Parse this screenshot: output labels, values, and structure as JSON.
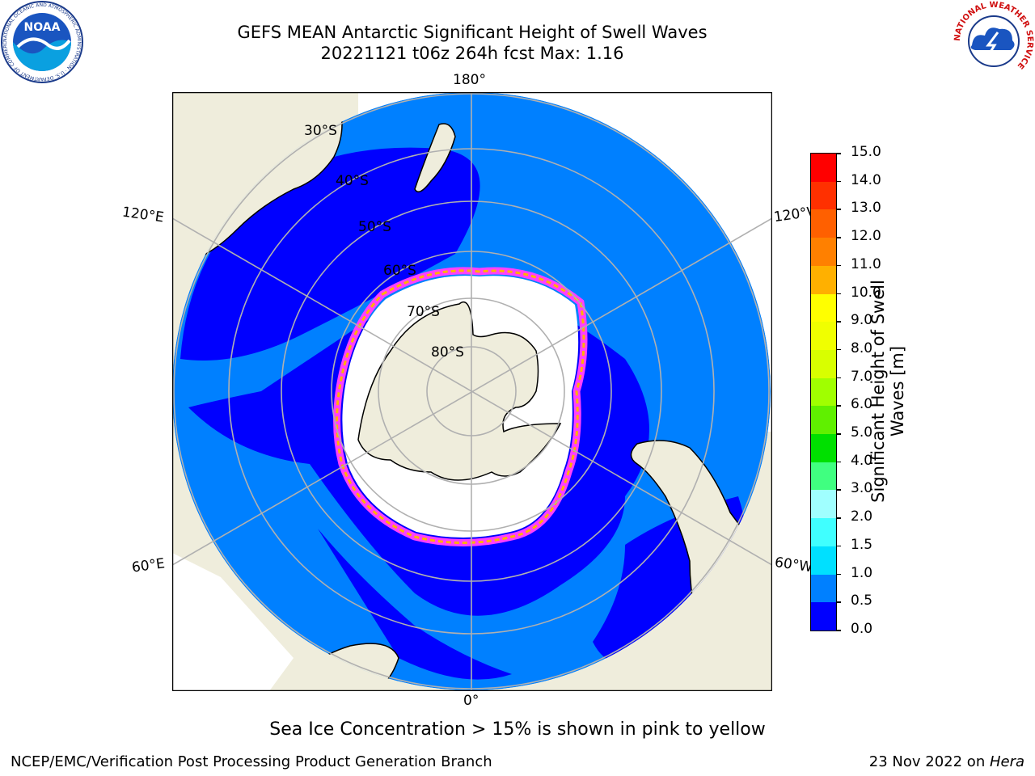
{
  "header": {
    "title_line1": "GEFS MEAN Antarctic Significant Height of Swell Waves",
    "title_line2": "20221121 t06z 264h fcst   Max: 1.16"
  },
  "logos": {
    "noaa": {
      "text": "NOAA",
      "ring_text": "NATIONAL OCEANIC AND ATMOSPHERIC ADMINISTRATION · U.S. DEPARTMENT OF COMMERCE"
    },
    "nws": {
      "ring_text": "NATIONAL WEATHER SERVICE"
    }
  },
  "map": {
    "longitude_labels": {
      "top": "180°",
      "bottom": "0°",
      "left_upper": "120°E",
      "left_lower": "60°E",
      "right_upper": "120°W",
      "right_lower": "60°W"
    },
    "latitude_labels": [
      "30°S",
      "40°S",
      "50°S",
      "60°S",
      "70°S",
      "80°S"
    ],
    "colors": {
      "land": "#efeddc",
      "open_ocean": "#0080ff",
      "low_swell": "#0000ff",
      "ice": "#ffffff",
      "ice_edge_pink": "#ff40ff",
      "ice_edge_orange": "#ffb000",
      "graticule": "#b0b0b0"
    }
  },
  "colorbar": {
    "label_line1": "Significant Height of Swell",
    "label_line2": "Waves [m]",
    "ticks": [
      "0.0",
      "0.5",
      "1.0",
      "1.5",
      "2.0",
      "3.0",
      "4.0",
      "5.0",
      "6.0",
      "7.0",
      "8.0",
      "9.0",
      "10.0",
      "11.0",
      "12.0",
      "13.0",
      "14.0",
      "15.0"
    ],
    "colors": [
      "#0000ff",
      "#0080ff",
      "#00e0ff",
      "#40ffff",
      "#a0ffff",
      "#40ff80",
      "#00e000",
      "#60f000",
      "#a0ff00",
      "#d8ff00",
      "#f0ff00",
      "#ffff00",
      "#ffb000",
      "#ff8000",
      "#ff6000",
      "#ff3000",
      "#ff0000"
    ]
  },
  "caption": "Sea Ice Concentration > 15% is shown in pink to yellow",
  "footer": {
    "left": "NCEP/EMC/Verification Post Processing Product Generation Branch",
    "right_prefix": "23 Nov 2022 on ",
    "right_host": "Hera"
  }
}
